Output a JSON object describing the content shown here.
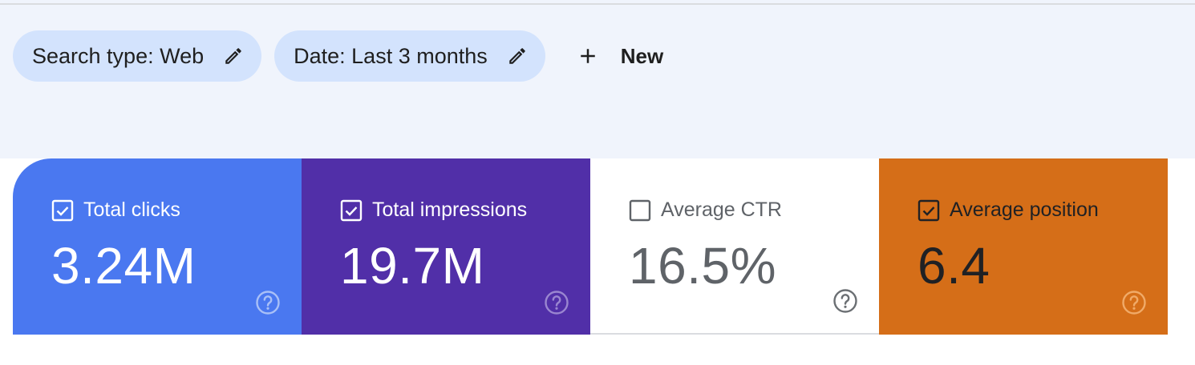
{
  "filters": {
    "chips": [
      {
        "label": "Search type: Web"
      },
      {
        "label": "Date: Last 3 months"
      }
    ],
    "new_label": "New"
  },
  "metrics": [
    {
      "label": "Total clicks",
      "value": "3.24M",
      "checked": true,
      "color": "#4a78f0"
    },
    {
      "label": "Total impressions",
      "value": "19.7M",
      "checked": true,
      "color": "#512fa8"
    },
    {
      "label": "Average CTR",
      "value": "16.5%",
      "checked": false,
      "color": "#ffffff"
    },
    {
      "label": "Average position",
      "value": "6.4",
      "checked": true,
      "color": "#d56e18"
    }
  ],
  "icons": {
    "edit": "pencil-icon",
    "new": "plus-icon",
    "help": "help-circle-icon"
  }
}
